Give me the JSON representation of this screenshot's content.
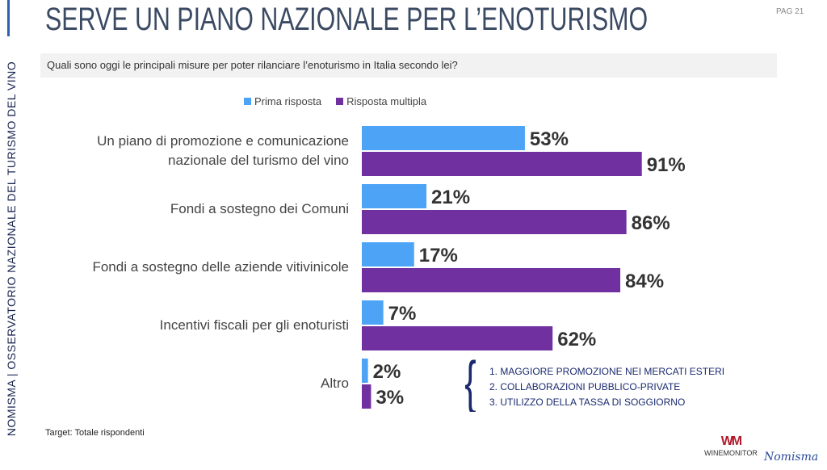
{
  "side_label": "NOMISMA | OSSERVATORIO NAZIONALE DEL TURISMO DEL VINO",
  "title": "SERVE UN PIANO NAZIONALE PER L’ENOTURISMO",
  "page": "PAG 21",
  "question": "Quali sono oggi le principali misure per poter rilanciare l’enoturismo in Italia secondo lei?",
  "notes": [
    "1. MAGGIORE PROMOZIONE NEI MERCATI ESTERI",
    "2. COLLABORAZIONI PUBBLICO-PRIVATE",
    "3. UTILIZZO DELLA TASSA DI SOGGIORNO"
  ],
  "target": "Target: Totale rispondenti",
  "logos": {
    "winemonitor": "WINEMONITOR",
    "nomisma": "Nomisma"
  },
  "chart_data": {
    "type": "bar",
    "orientation": "horizontal",
    "categories": [
      "Un piano di promozione e comunicazione nazionale del turismo del vino",
      "Fondi a sostegno dei Comuni",
      "Fondi a sostegno delle aziende vitivinicole",
      "Incentivi fiscali per gli enoturisti",
      "Altro"
    ],
    "category_lines": [
      [
        "Un piano di promozione e comunicazione",
        "nazionale del turismo del vino"
      ],
      [
        "Fondi a sostegno dei Comuni"
      ],
      [
        "Fondi a sostegno delle aziende vitivinicole"
      ],
      [
        "Incentivi fiscali per gli enoturisti"
      ],
      [
        "Altro"
      ]
    ],
    "series": [
      {
        "name": "Prima risposta",
        "color": "#4da3f5",
        "values": [
          53,
          21,
          17,
          7,
          2
        ]
      },
      {
        "name": "Risposta multipla",
        "color": "#7030a0",
        "values": [
          91,
          86,
          84,
          62,
          3
        ]
      }
    ],
    "unit": "%",
    "xlim": [
      0,
      100
    ],
    "legend": "top"
  }
}
